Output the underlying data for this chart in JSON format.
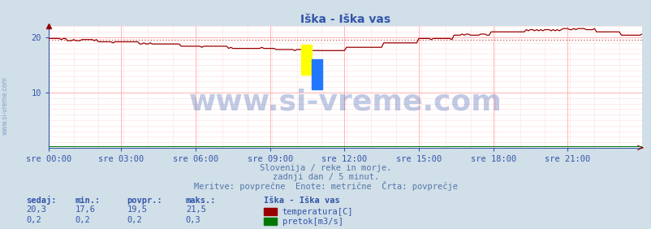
{
  "title": "Iška - Iška vas",
  "bg_color": "#d0dfe8",
  "plot_bg_color": "#ffffff",
  "grid_color_major": "#ffaaaa",
  "grid_color_minor": "#ffdddd",
  "x_labels": [
    "sre 00:00",
    "sre 03:00",
    "sre 06:00",
    "sre 09:00",
    "sre 12:00",
    "sre 15:00",
    "sre 18:00",
    "sre 21:00"
  ],
  "x_ticks_frac": [
    0.0,
    0.125,
    0.25,
    0.375,
    0.5,
    0.625,
    0.75,
    0.875
  ],
  "n_points": 288,
  "ylim": [
    0,
    22.0
  ],
  "yticks": [
    10,
    20
  ],
  "temp_color": "#990000",
  "flow_color": "#007700",
  "avg_line_color": "#cc6666",
  "watermark_text": "www.si-vreme.com",
  "watermark_color": "#3355aa",
  "watermark_alpha": 0.3,
  "watermark_fontsize": 26,
  "subtitle1": "Slovenija / reke in morje.",
  "subtitle2": "zadnji dan / 5 minut.",
  "subtitle3": "Meritve: povprečne  Enote: metrične  Črta: povprečje",
  "subtitle_color": "#5577aa",
  "legend_title": "Iška - Iška vas",
  "stat_headers": [
    "sedaj:",
    "min.:",
    "povpr.:",
    "maks.:"
  ],
  "stat_temp": [
    "20,3",
    "17,6",
    "19,5",
    "21,5"
  ],
  "stat_flow": [
    "0,2",
    "0,2",
    "0,2",
    "0,3"
  ],
  "label_temp": "temperatura[C]",
  "label_flow": "pretok[m3/s]",
  "title_color": "#3355aa",
  "title_fontsize": 10,
  "axis_label_color": "#3355aa",
  "axis_label_fontsize": 7.5,
  "stat_fontsize": 7.5,
  "avg_temp": 19.5,
  "spine_color": "#3355aa",
  "arrow_color": "#990000"
}
